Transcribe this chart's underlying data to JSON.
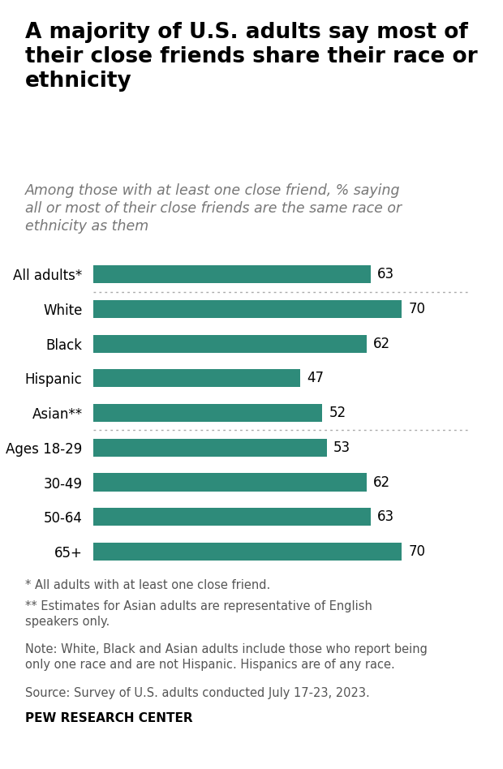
{
  "title": "A majority of U.S. adults say most of\ntheir close friends share their race or\nethnicity",
  "subtitle": "Among those with at least one close friend, % saying\nall or most of their close friends are the same race or\nethnicity as them",
  "categories": [
    "All adults*",
    "White",
    "Black",
    "Hispanic",
    "Asian**",
    "Ages 18-29",
    "30-49",
    "50-64",
    "65+"
  ],
  "values": [
    63,
    70,
    62,
    47,
    52,
    53,
    62,
    63,
    70
  ],
  "bar_color": "#2e8b7a",
  "background_color": "#ffffff",
  "xlim": [
    0,
    85
  ],
  "footnotes": [
    "* All adults with at least one close friend.",
    "** Estimates for Asian adults are representative of English\nspeakers only.",
    "Note: White, Black and Asian adults include those who report being\nonly one race and are not Hispanic. Hispanics are of any race.",
    "Source: Survey of U.S. adults conducted July 17-23, 2023."
  ],
  "source_label": "PEW RESEARCH CENTER",
  "separator_after_indices": [
    0,
    4
  ],
  "title_fontsize": 19,
  "subtitle_fontsize": 12.5,
  "label_fontsize": 12,
  "value_fontsize": 12,
  "footnote_fontsize": 10.5,
  "source_fontsize": 11
}
